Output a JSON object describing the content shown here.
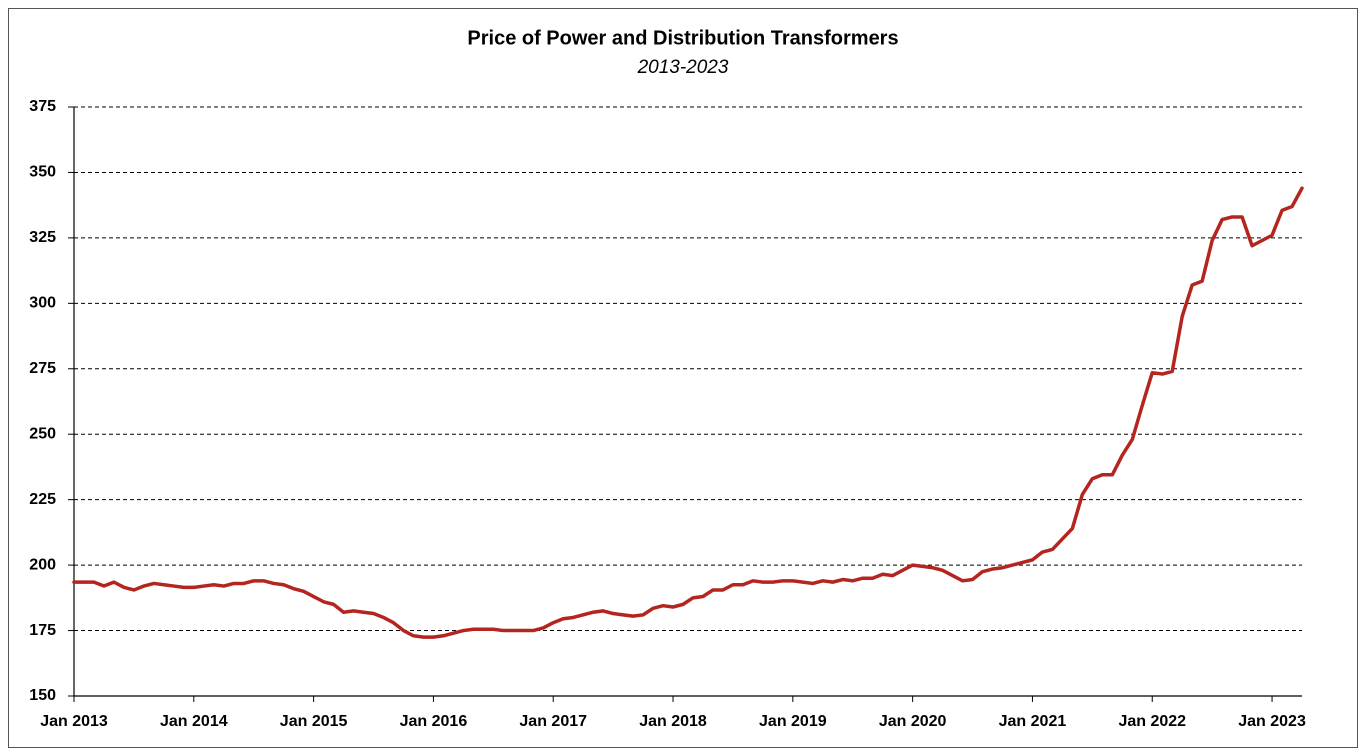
{
  "chart_data": {
    "type": "line",
    "title": "Price of Power and Distribution Transformers",
    "subtitle": "2013-2023",
    "x": [
      "2013-01",
      "2013-02",
      "2013-03",
      "2013-04",
      "2013-05",
      "2013-06",
      "2013-07",
      "2013-08",
      "2013-09",
      "2013-10",
      "2013-11",
      "2013-12",
      "2014-01",
      "2014-02",
      "2014-03",
      "2014-04",
      "2014-05",
      "2014-06",
      "2014-07",
      "2014-08",
      "2014-09",
      "2014-10",
      "2014-11",
      "2014-12",
      "2015-01",
      "2015-02",
      "2015-03",
      "2015-04",
      "2015-05",
      "2015-06",
      "2015-07",
      "2015-08",
      "2015-09",
      "2015-10",
      "2015-11",
      "2015-12",
      "2016-01",
      "2016-02",
      "2016-03",
      "2016-04",
      "2016-05",
      "2016-06",
      "2016-07",
      "2016-08",
      "2016-09",
      "2016-10",
      "2016-11",
      "2016-12",
      "2017-01",
      "2017-02",
      "2017-03",
      "2017-04",
      "2017-05",
      "2017-06",
      "2017-07",
      "2017-08",
      "2017-09",
      "2017-10",
      "2017-11",
      "2017-12",
      "2018-01",
      "2018-02",
      "2018-03",
      "2018-04",
      "2018-05",
      "2018-06",
      "2018-07",
      "2018-08",
      "2018-09",
      "2018-10",
      "2018-11",
      "2018-12",
      "2019-01",
      "2019-02",
      "2019-03",
      "2019-04",
      "2019-05",
      "2019-06",
      "2019-07",
      "2019-08",
      "2019-09",
      "2019-10",
      "2019-11",
      "2019-12",
      "2020-01",
      "2020-02",
      "2020-03",
      "2020-04",
      "2020-05",
      "2020-06",
      "2020-07",
      "2020-08",
      "2020-09",
      "2020-10",
      "2020-11",
      "2020-12",
      "2021-01",
      "2021-02",
      "2021-03",
      "2021-04",
      "2021-05",
      "2021-06",
      "2021-07",
      "2021-08",
      "2021-09",
      "2021-10",
      "2021-11",
      "2021-12",
      "2022-01",
      "2022-02",
      "2022-03",
      "2022-04",
      "2022-05",
      "2022-06",
      "2022-07",
      "2022-08",
      "2022-09",
      "2022-10",
      "2022-11",
      "2022-12",
      "2023-01",
      "2023-02",
      "2023-03",
      "2023-04"
    ],
    "series": [
      {
        "color": "#b5251f",
        "values": [
          193.5,
          193.5,
          193.5,
          192,
          193.5,
          191.5,
          190.5,
          192,
          193,
          192.5,
          192,
          191.5,
          191.5,
          192,
          192.5,
          192,
          193,
          193,
          194,
          194,
          193,
          192.5,
          191,
          190,
          188,
          186,
          185,
          182,
          182.5,
          182,
          181.5,
          180,
          178,
          175,
          173,
          172.5,
          172.5,
          173,
          174,
          175,
          175.5,
          175.5,
          175.5,
          175,
          175,
          175,
          175,
          176,
          178,
          179.5,
          180,
          181,
          182,
          182.5,
          181.5,
          181,
          180.5,
          181,
          183.5,
          184.5,
          184,
          185,
          187.5,
          188,
          190.5,
          190.5,
          192.5,
          192.5,
          194,
          193.5,
          193.5,
          194,
          194,
          193.5,
          193,
          194,
          193.5,
          194.5,
          194,
          195,
          195,
          196.5,
          196,
          198,
          200,
          199.5,
          199,
          198,
          196,
          194,
          194.5,
          197.5,
          198.5,
          199,
          200,
          201,
          202,
          205,
          206,
          210,
          214,
          227,
          233,
          234.5,
          234.5,
          242,
          248,
          261,
          273.5,
          273,
          274,
          295,
          307,
          308.5,
          324,
          332,
          333,
          333,
          322,
          324,
          326,
          335.5,
          337,
          344
        ]
      }
    ],
    "xlim": [
      "2013-01",
      "2023-04"
    ],
    "xticks": [
      {
        "value": "2013-01",
        "label": "Jan 2013"
      },
      {
        "value": "2014-01",
        "label": "Jan 2014"
      },
      {
        "value": "2015-01",
        "label": "Jan 2015"
      },
      {
        "value": "2016-01",
        "label": "Jan 2016"
      },
      {
        "value": "2017-01",
        "label": "Jan 2017"
      },
      {
        "value": "2018-01",
        "label": "Jan 2018"
      },
      {
        "value": "2019-01",
        "label": "Jan 2019"
      },
      {
        "value": "2020-01",
        "label": "Jan 2020"
      },
      {
        "value": "2021-01",
        "label": "Jan 2021"
      },
      {
        "value": "2022-01",
        "label": "Jan 2022"
      },
      {
        "value": "2023-01",
        "label": "Jan 2023"
      }
    ],
    "ylim": [
      150,
      375
    ],
    "yticks": [
      150,
      175,
      200,
      225,
      250,
      275,
      300,
      325,
      350,
      375
    ],
    "grid": true
  }
}
